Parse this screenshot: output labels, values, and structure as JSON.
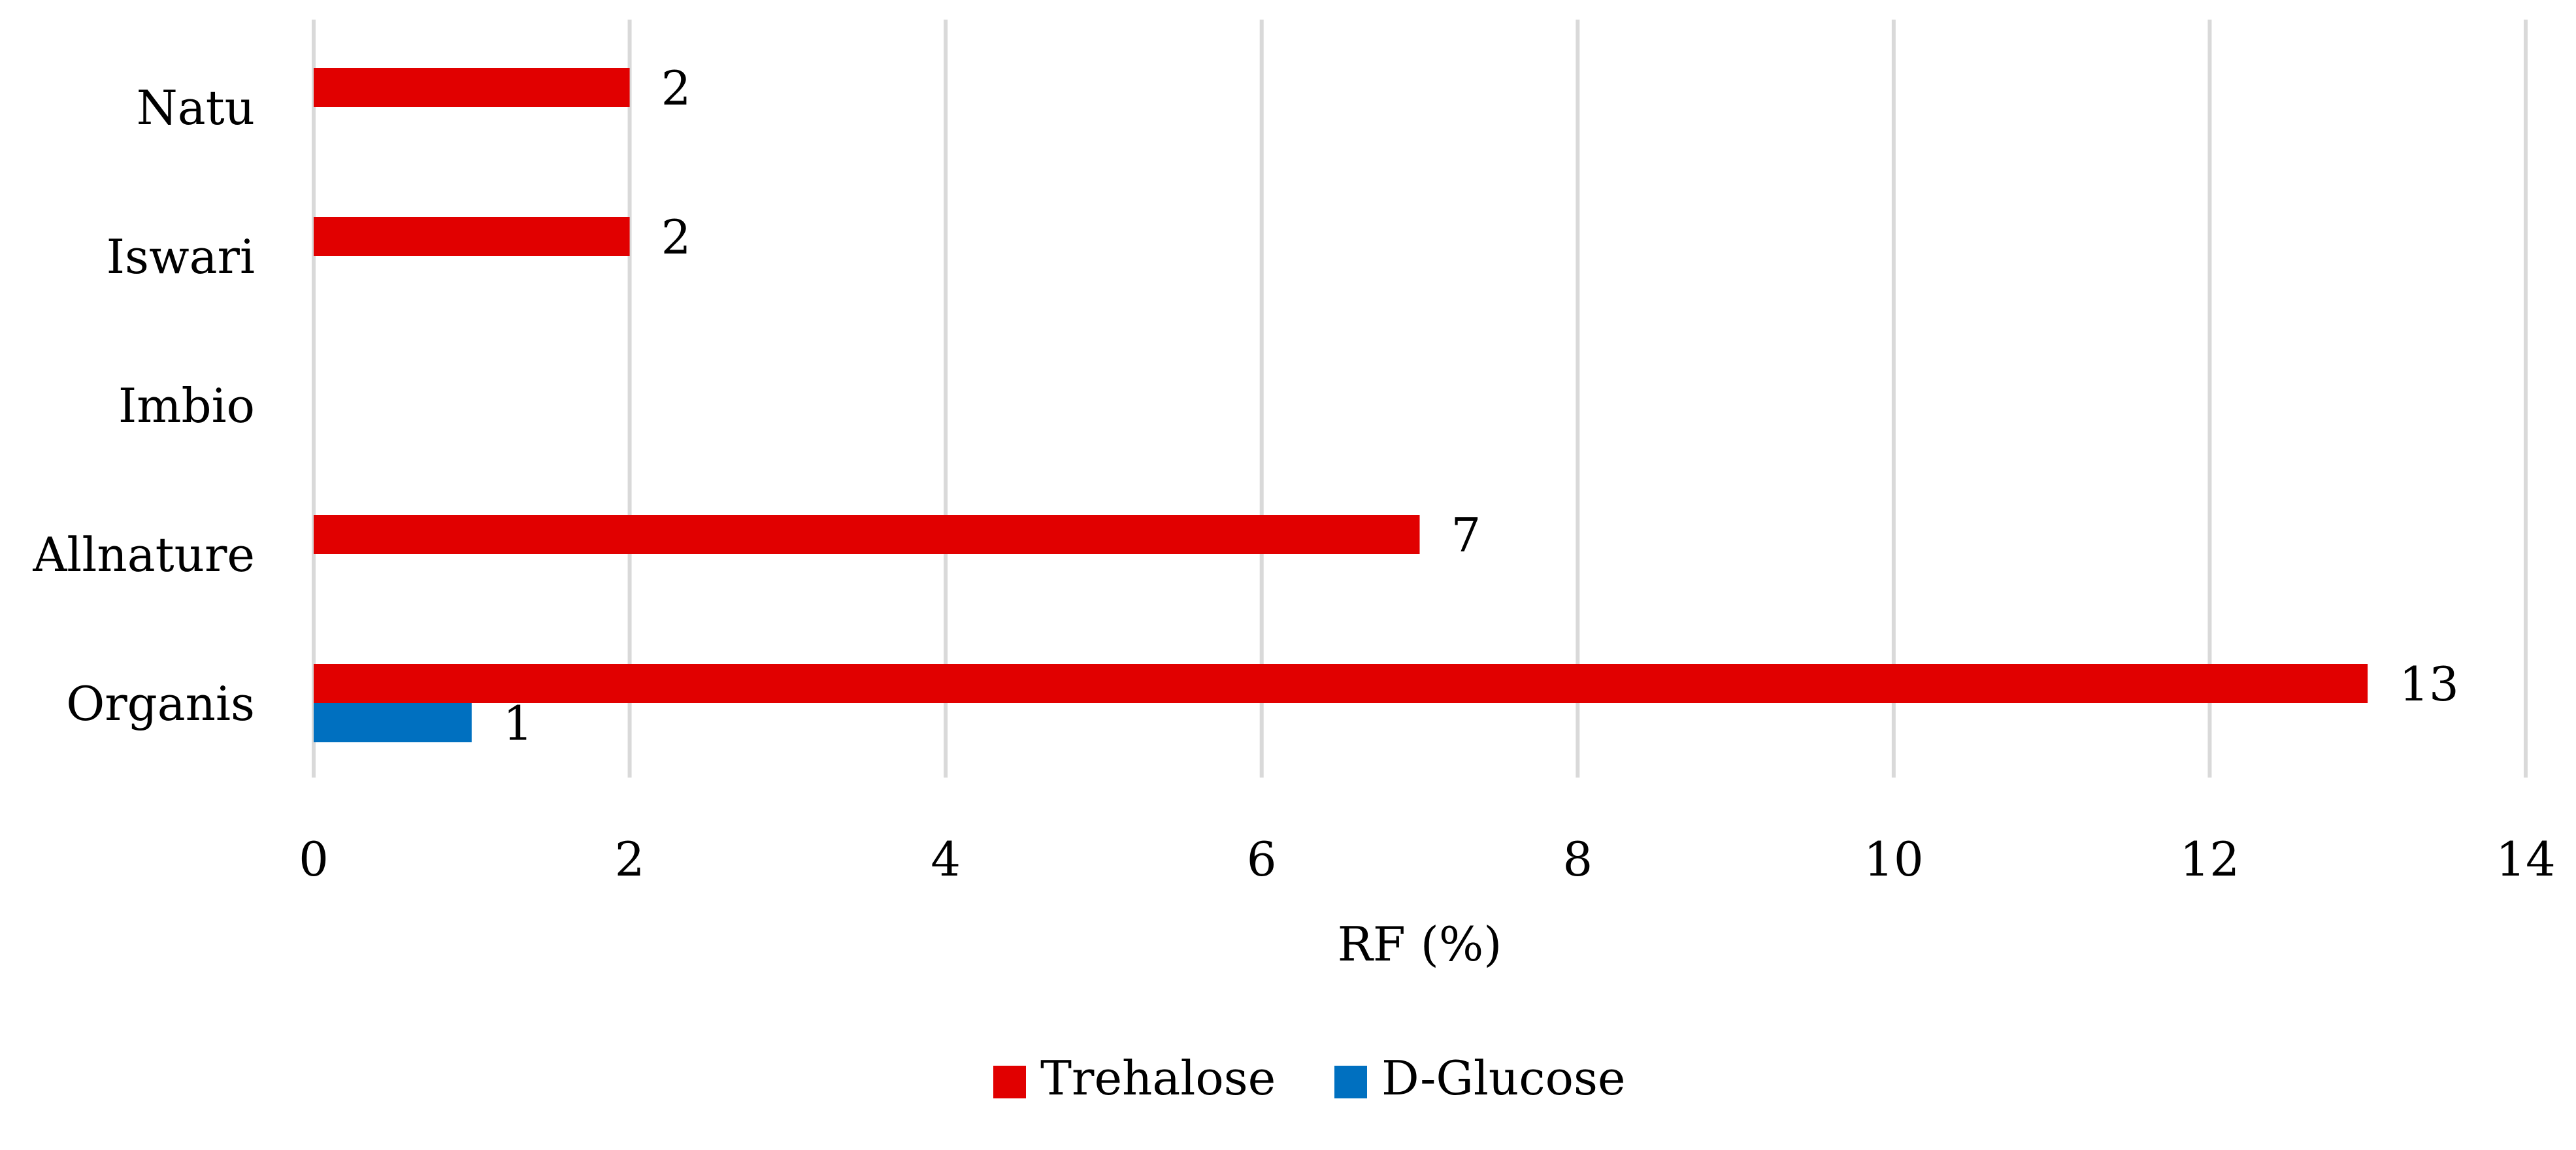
{
  "chart_data": {
    "type": "bar",
    "orientation": "horizontal",
    "title": "",
    "xlabel": "RF (%)",
    "ylabel": "",
    "categories": [
      "Organis",
      "Allnature",
      "Imbio",
      "Iswari",
      "Natu"
    ],
    "series": [
      {
        "name": "Trehalose",
        "color": "#E10000",
        "values": [
          13,
          7,
          0,
          2,
          2
        ]
      },
      {
        "name": "D-Glucose",
        "color": "#0070C0",
        "values": [
          1,
          0,
          0,
          0,
          0
        ]
      }
    ],
    "data_labels": {
      "Trehalose": [
        "13",
        "7",
        "",
        "2",
        "2"
      ],
      "D-Glucose": [
        "1",
        "",
        "",
        "",
        ""
      ]
    },
    "xlim": [
      0,
      14
    ],
    "x_ticks": [
      0,
      2,
      4,
      6,
      8,
      10,
      12,
      14
    ],
    "grid": true,
    "legend_position": "bottom"
  },
  "colors": {
    "gridline": "#D9D9D9",
    "axis": "#D9D9D9",
    "text": "#000000"
  }
}
